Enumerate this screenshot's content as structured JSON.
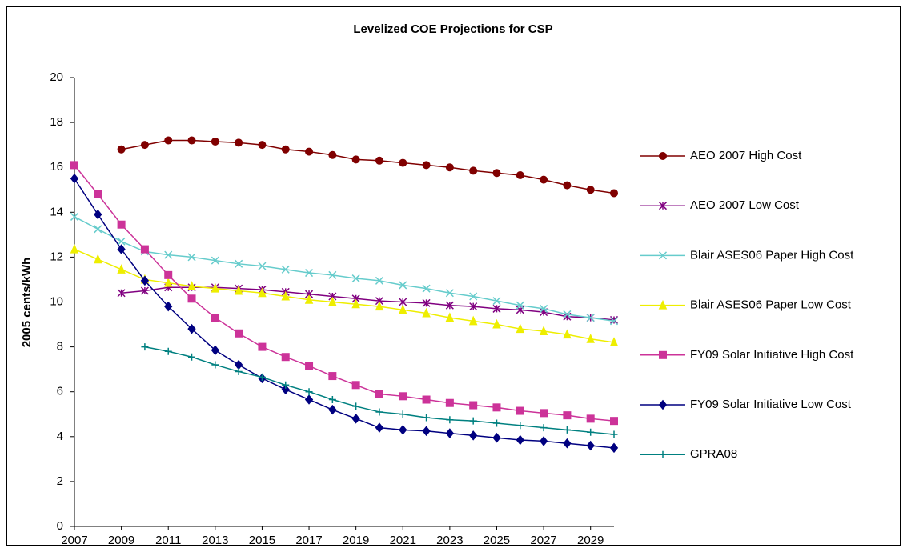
{
  "chart_data": {
    "type": "line",
    "title": "Levelized COE Projections for CSP",
    "y_label": "2005 cents/kWh",
    "x": [
      2007,
      2008,
      2009,
      2010,
      2011,
      2012,
      2013,
      2014,
      2015,
      2016,
      2017,
      2018,
      2019,
      2020,
      2021,
      2022,
      2023,
      2024,
      2025,
      2026,
      2027,
      2028,
      2029,
      2030
    ],
    "xlim": [
      2007,
      2030
    ],
    "xticks": [
      2007,
      2009,
      2011,
      2013,
      2015,
      2017,
      2019,
      2021,
      2023,
      2025,
      2027,
      2029
    ],
    "ylim": [
      0,
      20
    ],
    "yticks": [
      0,
      2,
      4,
      6,
      8,
      10,
      12,
      14,
      16,
      18,
      20
    ],
    "grid": false,
    "legend": "right",
    "series": [
      {
        "name": "AEO 2007 High Cost",
        "color": "#800000",
        "marker": "circle",
        "values": [
          null,
          null,
          16.8,
          17.0,
          17.2,
          17.2,
          17.15,
          17.1,
          17.0,
          16.8,
          16.7,
          16.55,
          16.35,
          16.3,
          16.2,
          16.1,
          16.0,
          15.85,
          15.75,
          15.65,
          15.45,
          15.2,
          15.0,
          14.85
        ]
      },
      {
        "name": "AEO 2007 Low Cost",
        "color": "#800080",
        "marker": "star",
        "values": [
          null,
          null,
          10.4,
          10.5,
          10.65,
          10.65,
          10.65,
          10.6,
          10.55,
          10.45,
          10.35,
          10.25,
          10.15,
          10.05,
          10.0,
          9.95,
          9.85,
          9.8,
          9.7,
          9.65,
          9.55,
          9.35,
          9.3,
          9.2
        ]
      },
      {
        "name": "Blair ASES06 Paper High Cost",
        "color": "#66cccc",
        "marker": "x",
        "values": [
          13.8,
          13.25,
          12.7,
          12.25,
          12.1,
          12.0,
          11.85,
          11.7,
          11.6,
          11.45,
          11.3,
          11.2,
          11.05,
          10.95,
          10.75,
          10.6,
          10.4,
          10.25,
          10.05,
          9.85,
          9.7,
          9.45,
          9.3,
          9.15
        ]
      },
      {
        "name": "Blair ASES06 Paper Low Cost",
        "color": "#eeee00",
        "marker": "triangle",
        "values": [
          12.35,
          11.9,
          11.45,
          11.0,
          10.85,
          10.7,
          10.6,
          10.5,
          10.4,
          10.25,
          10.1,
          10.0,
          9.9,
          9.8,
          9.65,
          9.5,
          9.3,
          9.15,
          9.0,
          8.8,
          8.7,
          8.55,
          8.35,
          8.2
        ]
      },
      {
        "name": "FY09 Solar Initiative High Cost",
        "color": "#cc3399",
        "marker": "square",
        "values": [
          16.1,
          14.8,
          13.45,
          12.35,
          11.2,
          10.15,
          9.3,
          8.6,
          8.0,
          7.55,
          7.15,
          6.7,
          6.3,
          5.9,
          5.8,
          5.65,
          5.5,
          5.4,
          5.3,
          5.15,
          5.05,
          4.95,
          4.8,
          4.7
        ]
      },
      {
        "name": "FY09 Solar Initiative Low Cost",
        "color": "#000080",
        "marker": "diamond",
        "values": [
          15.5,
          13.9,
          12.35,
          10.95,
          9.8,
          8.8,
          7.85,
          7.2,
          6.6,
          6.1,
          5.65,
          5.2,
          4.8,
          4.4,
          4.3,
          4.25,
          4.15,
          4.05,
          3.95,
          3.85,
          3.8,
          3.7,
          3.6,
          3.5
        ]
      },
      {
        "name": "GPRA08",
        "color": "#008080",
        "marker": "plus",
        "values": [
          null,
          null,
          null,
          8.0,
          7.8,
          7.55,
          7.2,
          6.9,
          6.65,
          6.3,
          6.0,
          5.65,
          5.35,
          5.1,
          5.0,
          4.85,
          4.75,
          4.7,
          4.6,
          4.5,
          4.4,
          4.3,
          4.2,
          4.1
        ]
      }
    ]
  }
}
